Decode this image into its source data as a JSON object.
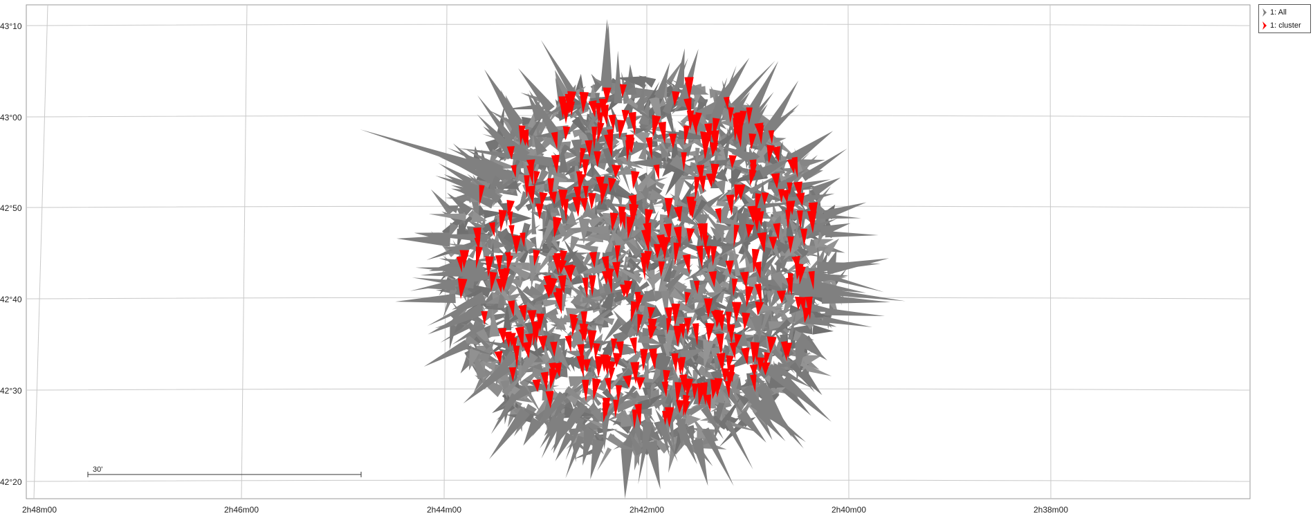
{
  "map": {
    "lat_axis": {
      "ticks": [
        "43°10",
        "43°00",
        "42°50",
        "42°40",
        "42°30",
        "42°20"
      ]
    },
    "ra_axis": {
      "ticks": [
        "2h48m00",
        "2h46m00",
        "2h44m00",
        "2h42m00",
        "2h40m00",
        "2h38m00"
      ]
    },
    "scale_bar": {
      "label": "30'"
    },
    "colors": {
      "all": "#808080",
      "cluster": "#ff0000",
      "grid": "#c8c8c8",
      "background": "#ffffff"
    }
  },
  "legend": {
    "items": [
      {
        "label": "1: All",
        "color": "#808080"
      },
      {
        "label": "1: cluster",
        "color": "#ff0000"
      }
    ]
  }
}
